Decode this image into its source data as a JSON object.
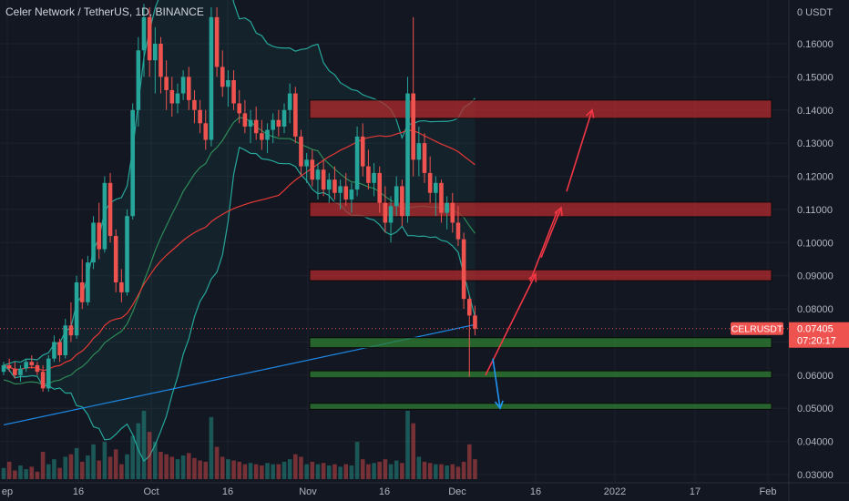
{
  "header": {
    "title": "Celer Network / TetherUS, 1D, BINANCE"
  },
  "price_tag": {
    "symbol": "CELRUSDT",
    "price": "0.07405",
    "countdown": "07:20:17"
  },
  "colors": {
    "background": "#131722",
    "up": "#26a69a",
    "down": "#ef5350",
    "resistance_zone": "#b22b2e",
    "support_zone": "#2e7d32",
    "ma_fast": "#2e8b57",
    "ma_mid": "#e53935",
    "ma_slow": "#1e88e5",
    "bollinger": "#26a69a",
    "arrow_up": "#f23645",
    "arrow_down": "#2196f3"
  },
  "chart_data": {
    "type": "candlestick",
    "title": "Celer Network / TetherUS, 1D, BINANCE",
    "y_axis": {
      "label": "USDT",
      "ticks": [
        "0.03000",
        "0.04000",
        "0.05000",
        "0.06000",
        "0.07000",
        "0.08000",
        "0.09000",
        "0.10000",
        "0.11000",
        "0.12000",
        "0.13000",
        "0.14000",
        "0.15000",
        "0.16000"
      ],
      "top_label": "0 USDT",
      "range": [
        0.0295,
        0.171
      ]
    },
    "x_axis": {
      "ticks": [
        "ep",
        "16",
        "Oct",
        "16",
        "Nov",
        "16",
        "Dec",
        "16",
        "2022",
        "17",
        "Feb"
      ]
    },
    "current_price": 0.07405,
    "zones": [
      {
        "kind": "resistance",
        "low": 0.1375,
        "high": 0.143
      },
      {
        "kind": "resistance",
        "low": 0.1078,
        "high": 0.1122
      },
      {
        "kind": "resistance",
        "low": 0.0885,
        "high": 0.0918
      },
      {
        "kind": "support",
        "low": 0.0683,
        "high": 0.0713
      },
      {
        "kind": "support",
        "low": 0.0592,
        "high": 0.0613
      },
      {
        "kind": "support",
        "low": 0.0497,
        "high": 0.0515
      }
    ],
    "projection_up": [
      0.06,
      0.0905,
      0.1105,
      0.14
    ],
    "projection_down": [
      0.065,
      0.05
    ],
    "candles": [
      [
        0.061,
        0.064,
        0.06,
        0.063
      ],
      [
        0.063,
        0.065,
        0.061,
        0.062
      ],
      [
        0.062,
        0.064,
        0.059,
        0.06
      ],
      [
        0.06,
        0.063,
        0.058,
        0.062
      ],
      [
        0.062,
        0.065,
        0.061,
        0.064
      ],
      [
        0.064,
        0.066,
        0.062,
        0.063
      ],
      [
        0.063,
        0.064,
        0.06,
        0.061
      ],
      [
        0.061,
        0.063,
        0.055,
        0.056
      ],
      [
        0.056,
        0.066,
        0.055,
        0.065
      ],
      [
        0.065,
        0.072,
        0.064,
        0.07
      ],
      [
        0.07,
        0.071,
        0.064,
        0.066
      ],
      [
        0.066,
        0.077,
        0.065,
        0.075
      ],
      [
        0.075,
        0.082,
        0.07,
        0.072
      ],
      [
        0.072,
        0.09,
        0.071,
        0.088
      ],
      [
        0.088,
        0.095,
        0.08,
        0.082
      ],
      [
        0.082,
        0.096,
        0.081,
        0.094
      ],
      [
        0.094,
        0.108,
        0.092,
        0.106
      ],
      [
        0.106,
        0.112,
        0.095,
        0.098
      ],
      [
        0.098,
        0.12,
        0.097,
        0.118
      ],
      [
        0.118,
        0.121,
        0.1,
        0.102
      ],
      [
        0.102,
        0.104,
        0.085,
        0.088
      ],
      [
        0.088,
        0.092,
        0.082,
        0.085
      ],
      [
        0.085,
        0.11,
        0.084,
        0.108
      ],
      [
        0.108,
        0.142,
        0.107,
        0.14
      ],
      [
        0.14,
        0.162,
        0.135,
        0.158
      ],
      [
        0.158,
        0.172,
        0.15,
        0.168
      ],
      [
        0.168,
        0.171,
        0.15,
        0.155
      ],
      [
        0.155,
        0.165,
        0.145,
        0.16
      ],
      [
        0.16,
        0.162,
        0.145,
        0.15
      ],
      [
        0.15,
        0.155,
        0.14,
        0.146
      ],
      [
        0.146,
        0.15,
        0.138,
        0.142
      ],
      [
        0.142,
        0.148,
        0.139,
        0.145
      ],
      [
        0.145,
        0.152,
        0.143,
        0.15
      ],
      [
        0.15,
        0.153,
        0.14,
        0.143
      ],
      [
        0.143,
        0.146,
        0.136,
        0.14
      ],
      [
        0.14,
        0.143,
        0.133,
        0.136
      ],
      [
        0.136,
        0.14,
        0.128,
        0.131
      ],
      [
        0.131,
        0.171,
        0.129,
        0.168
      ],
      [
        0.168,
        0.171,
        0.15,
        0.153
      ],
      [
        0.153,
        0.158,
        0.144,
        0.147
      ],
      [
        0.147,
        0.152,
        0.141,
        0.149
      ],
      [
        0.149,
        0.152,
        0.14,
        0.142
      ],
      [
        0.142,
        0.146,
        0.136,
        0.139
      ],
      [
        0.139,
        0.143,
        0.133,
        0.135
      ],
      [
        0.135,
        0.14,
        0.13,
        0.137
      ],
      [
        0.137,
        0.141,
        0.131,
        0.133
      ],
      [
        0.133,
        0.137,
        0.128,
        0.131
      ],
      [
        0.131,
        0.136,
        0.127,
        0.134
      ],
      [
        0.134,
        0.139,
        0.13,
        0.137
      ],
      [
        0.137,
        0.14,
        0.132,
        0.135
      ],
      [
        0.135,
        0.142,
        0.133,
        0.14
      ],
      [
        0.14,
        0.148,
        0.136,
        0.145
      ],
      [
        0.145,
        0.147,
        0.13,
        0.132
      ],
      [
        0.132,
        0.134,
        0.12,
        0.123
      ],
      [
        0.123,
        0.127,
        0.118,
        0.125
      ],
      [
        0.125,
        0.128,
        0.117,
        0.119
      ],
      [
        0.119,
        0.124,
        0.113,
        0.122
      ],
      [
        0.122,
        0.125,
        0.114,
        0.116
      ],
      [
        0.116,
        0.121,
        0.112,
        0.119
      ],
      [
        0.119,
        0.123,
        0.113,
        0.115
      ],
      [
        0.115,
        0.119,
        0.11,
        0.117
      ],
      [
        0.117,
        0.121,
        0.111,
        0.113
      ],
      [
        0.113,
        0.118,
        0.109,
        0.116
      ],
      [
        0.116,
        0.135,
        0.114,
        0.132
      ],
      [
        0.132,
        0.136,
        0.12,
        0.123
      ],
      [
        0.123,
        0.128,
        0.116,
        0.118
      ],
      [
        0.118,
        0.124,
        0.114,
        0.121
      ],
      [
        0.121,
        0.123,
        0.109,
        0.112
      ],
      [
        0.112,
        0.117,
        0.103,
        0.106
      ],
      [
        0.106,
        0.114,
        0.1,
        0.111
      ],
      [
        0.111,
        0.12,
        0.108,
        0.117
      ],
      [
        0.117,
        0.119,
        0.105,
        0.108
      ],
      [
        0.108,
        0.15,
        0.106,
        0.145
      ],
      [
        0.145,
        0.168,
        0.12,
        0.125
      ],
      [
        0.125,
        0.135,
        0.12,
        0.13
      ],
      [
        0.13,
        0.133,
        0.118,
        0.121
      ],
      [
        0.121,
        0.126,
        0.112,
        0.115
      ],
      [
        0.115,
        0.12,
        0.108,
        0.118
      ],
      [
        0.118,
        0.119,
        0.106,
        0.109
      ],
      [
        0.109,
        0.114,
        0.104,
        0.112
      ],
      [
        0.112,
        0.115,
        0.103,
        0.106
      ],
      [
        0.106,
        0.111,
        0.099,
        0.101
      ],
      [
        0.101,
        0.103,
        0.08,
        0.083
      ],
      [
        0.083,
        0.084,
        0.0595,
        0.078
      ],
      [
        0.078,
        0.081,
        0.072,
        0.074
      ]
    ],
    "volumes": [
      9,
      14,
      7,
      11,
      8,
      10,
      6,
      22,
      12,
      16,
      9,
      18,
      20,
      25,
      14,
      19,
      28,
      15,
      30,
      18,
      24,
      12,
      20,
      35,
      45,
      55,
      38,
      30,
      22,
      20,
      18,
      16,
      19,
      21,
      17,
      15,
      14,
      50,
      26,
      18,
      16,
      15,
      14,
      12,
      13,
      12,
      11,
      13,
      12,
      12,
      14,
      16,
      20,
      18,
      12,
      14,
      12,
      13,
      11,
      12,
      10,
      12,
      11,
      30,
      16,
      12,
      13,
      14,
      16,
      12,
      15,
      13,
      55,
      45,
      18,
      14,
      13,
      12,
      12,
      11,
      12,
      10,
      14,
      28,
      16
    ]
  }
}
